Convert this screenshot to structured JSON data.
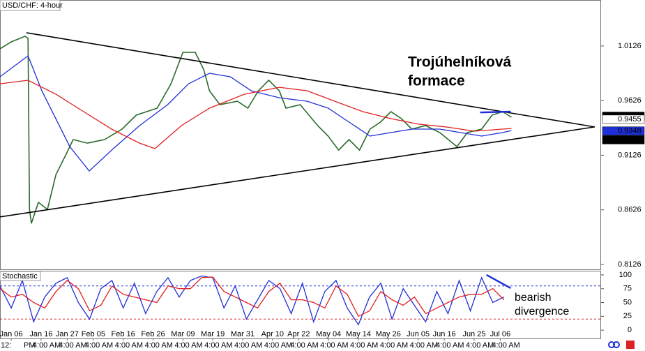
{
  "chart_data": [
    {
      "type": "line",
      "title": "USD/CHF: 4-hour",
      "xlim": [
        -3,
        158
      ],
      "ylim": [
        0.8081,
        1.0547
      ],
      "yticks": [
        0.8126,
        0.8626,
        0.9126,
        0.9626,
        1.0126
      ],
      "series": [
        {
          "color": "#2a6a2a",
          "x": [
            -3.0,
            0,
            3.7,
            4.5,
            4.9,
            5.4,
            7.3,
            9.7,
            12.0,
            14.8,
            16.6,
            20.4,
            25.0,
            29.7,
            33.5,
            39.1,
            42.8,
            46.0,
            49.3,
            51.6,
            53.1,
            55.9,
            60.6,
            63.4,
            66.2,
            69.0,
            71.8,
            73.6,
            77.4,
            82.1,
            84.9,
            87.7,
            90.5,
            93.3,
            96.1,
            98.9,
            101.7,
            104.5,
            107.3,
            111.0,
            114.8,
            119.4,
            122.2,
            126.0,
            128.8,
            131.6,
            134.0
          ],
          "values": [
            1.01,
            1.0164,
            1.0215,
            1.0196,
            0.863,
            0.8502,
            0.8694,
            0.863,
            0.895,
            0.9141,
            0.9269,
            0.9237,
            0.9269,
            0.9365,
            0.9493,
            0.9557,
            0.978,
            1.0068,
            1.0068,
            0.9908,
            0.9716,
            0.9589,
            0.962,
            0.9557,
            0.9716,
            0.9812,
            0.9716,
            0.9557,
            0.9589,
            0.9397,
            0.9301,
            0.9173,
            0.9269,
            0.9173,
            0.9365,
            0.9429,
            0.9525,
            0.9461,
            0.9365,
            0.9397,
            0.9333,
            0.9205,
            0.9333,
            0.9365,
            0.9493,
            0.9525,
            0.9474
          ]
        },
        {
          "color": "#1f2fd6",
          "x": [
            -3.0,
            4.5,
            8.2,
            15.7,
            20.9,
            26.9,
            34.4,
            41.9,
            47.5,
            53.1,
            58.7,
            64.3,
            71.8,
            79.3,
            84.9,
            90.5,
            96.1,
            101.7,
            107.3,
            114.8,
            120.4,
            126.0,
            131.6,
            134.0
          ],
          "values": [
            0.9844,
            1.0036,
            0.9716,
            0.9205,
            0.8981,
            0.9173,
            0.9397,
            0.9589,
            0.978,
            0.9876,
            0.9844,
            0.9716,
            0.9652,
            0.962,
            0.9557,
            0.9429,
            0.9301,
            0.9333,
            0.9365,
            0.9365,
            0.9333,
            0.9301,
            0.9333,
            0.9352
          ]
        },
        {
          "color": "#e01f1f",
          "x": [
            -3.0,
            4.5,
            12.0,
            19.4,
            26.9,
            34.4,
            38.5,
            45.6,
            53.1,
            62.4,
            71.8,
            79.3,
            86.7,
            94.2,
            101.7,
            109.2,
            116.6,
            124.1,
            131.6,
            134.0
          ],
          "values": [
            0.978,
            0.9812,
            0.9684,
            0.9525,
            0.9365,
            0.9237,
            0.9186,
            0.9397,
            0.9557,
            0.9684,
            0.9748,
            0.9716,
            0.962,
            0.9525,
            0.9461,
            0.941,
            0.9384,
            0.9346,
            0.9365,
            0.9371
          ]
        }
      ],
      "trendlines": [
        {
          "color": "#000000",
          "x": [
            4.1,
            156.3
          ],
          "values": [
            1.0247,
            0.9385
          ]
        },
        {
          "color": "#000000",
          "x": [
            -3.0,
            156.3
          ],
          "values": [
            0.8561,
            0.9385
          ]
        },
        {
          "color": "#1f2fd6",
          "x": [
            125.6,
            133.8
          ],
          "values": [
            0.9518,
            0.9525
          ]
        }
      ],
      "price_labels": [
        {
          "value": 0.9483,
          "color": "#000000"
        },
        {
          "value": 0.9455,
          "color": "#ffffff"
        },
        {
          "value": 0.9348,
          "color": "#1f2fd6"
        },
        {
          "value": 0.9267,
          "color": "#000000"
        }
      ],
      "annotation": [
        "Trojúhelníková",
        "formace"
      ]
    },
    {
      "type": "line",
      "title": "Stochastic",
      "xlim": [
        -3,
        158
      ],
      "ylim": [
        -15,
        107.5
      ],
      "yticks": [
        0,
        25,
        50,
        75,
        100
      ],
      "levels": [
        {
          "value": 80,
          "color": "#1f2fd6"
        },
        {
          "value": 20,
          "color": "#e01f1f"
        }
      ],
      "series": [
        {
          "color": "#1f2fd6",
          "x": [
            -3,
            0,
            3,
            6,
            9,
            12,
            15,
            18,
            21,
            24,
            27,
            30,
            33,
            36,
            39,
            42,
            45,
            48,
            51,
            54,
            57,
            60,
            63,
            66,
            69,
            72,
            75,
            78,
            81,
            84,
            87,
            90,
            93,
            96,
            99,
            102,
            105,
            108,
            111,
            114,
            117,
            120,
            123,
            126,
            129,
            132
          ],
          "values": [
            80,
            40,
            90,
            15,
            60,
            85,
            95,
            50,
            20,
            75,
            90,
            40,
            85,
            30,
            70,
            95,
            60,
            90,
            98,
            95,
            40,
            80,
            20,
            55,
            90,
            75,
            30,
            85,
            15,
            70,
            90,
            40,
            10,
            60,
            85,
            20,
            75,
            45,
            15,
            70,
            30,
            90,
            35,
            95,
            50,
            60
          ]
        },
        {
          "color": "#e01f1f",
          "x": [
            -3,
            0,
            3,
            6,
            9,
            12,
            15,
            18,
            21,
            24,
            27,
            30,
            33,
            36,
            39,
            42,
            45,
            48,
            51,
            54,
            57,
            60,
            63,
            66,
            69,
            72,
            75,
            78,
            81,
            84,
            87,
            90,
            93,
            96,
            99,
            102,
            105,
            108,
            111,
            114,
            117,
            120,
            123,
            126,
            129,
            132
          ],
          "values": [
            75,
            60,
            65,
            50,
            40,
            70,
            90,
            75,
            35,
            45,
            80,
            65,
            60,
            55,
            50,
            80,
            75,
            75,
            95,
            96,
            70,
            60,
            50,
            40,
            70,
            85,
            55,
            55,
            50,
            40,
            80,
            65,
            25,
            35,
            70,
            55,
            45,
            60,
            30,
            40,
            50,
            60,
            65,
            65,
            75,
            55
          ]
        }
      ],
      "trendlines": [
        {
          "color": "#1f2fd6",
          "x": [
            127.3,
            133.8
          ],
          "values": [
            100,
            76
          ]
        }
      ],
      "xticks": [
        {
          "value": 0,
          "label": "Jan 06"
        },
        {
          "value": 8,
          "label": "Jan 16"
        },
        {
          "value": 15,
          "label": "Jan 27"
        },
        {
          "value": 22,
          "label": "Feb 05"
        },
        {
          "value": 30,
          "label": "Feb 16"
        },
        {
          "value": 38,
          "label": "Feb 26"
        },
        {
          "value": 46,
          "label": "Mar 09"
        },
        {
          "value": 54,
          "label": "Mar 19"
        },
        {
          "value": 62,
          "label": "Mar 31"
        },
        {
          "value": 70,
          "label": "Apr 10"
        },
        {
          "value": 77,
          "label": "Apr 22"
        },
        {
          "value": 85,
          "label": "May 04"
        },
        {
          "value": 93,
          "label": "May 14"
        },
        {
          "value": 101,
          "label": "May 26"
        },
        {
          "value": 109,
          "label": "Jun 05"
        },
        {
          "value": 116,
          "label": "Jun 16"
        },
        {
          "value": 124,
          "label": "Jun 25"
        },
        {
          "value": 131,
          "label": "Jul 06"
        }
      ],
      "time_labels": [
        "12:",
        "PM",
        "4:00 AM",
        "4:00 AM",
        "4:00 AM",
        "4:00 AM",
        "4:00 AM",
        "4:00 AM",
        "4:00 AM",
        "4:00 AM",
        "4:00 AM",
        "4:00 AM",
        "4:00 AM",
        "4:00 AM",
        "4:00 AM",
        "4:00 AM",
        "4:00 AM",
        "4:00 AM",
        "4:00 AM"
      ],
      "annotation": [
        "bearish",
        "divergence"
      ]
    }
  ]
}
